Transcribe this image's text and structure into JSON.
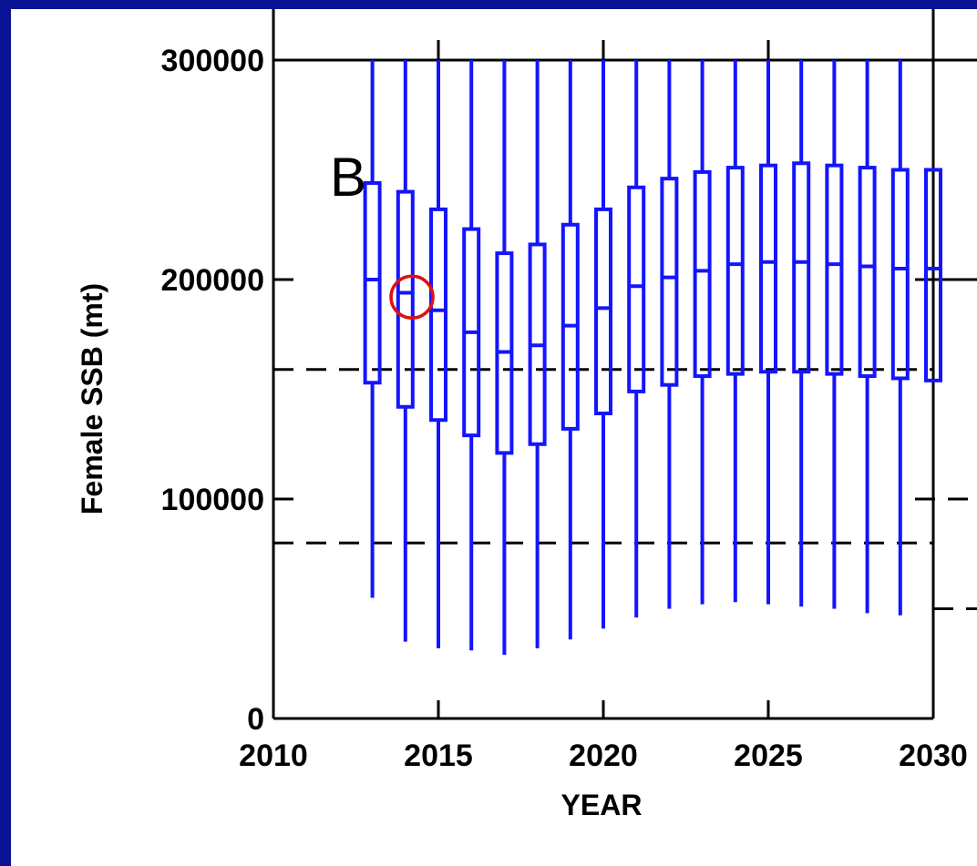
{
  "chart_data": {
    "type": "box",
    "panel_label": "B",
    "xlabel": "YEAR",
    "ylabel": "Female SSB (mt)",
    "xlim": [
      2010,
      2030
    ],
    "ylim": [
      0,
      300000
    ],
    "x_ticks": [
      2010,
      2015,
      2020,
      2025,
      2030
    ],
    "x_tick_labels": [
      "2010",
      "2015",
      "2020",
      "2025",
      "2030"
    ],
    "y_ticks": [
      0,
      100000,
      200000,
      300000
    ],
    "y_tick_labels": [
      "0",
      "100000",
      "200000",
      "300000"
    ],
    "series_color": "#1414ff",
    "reference_lines": [
      {
        "y": 159000,
        "style": "dashed"
      },
      {
        "y": 80000,
        "style": "dashed"
      }
    ],
    "highlight": {
      "x": 2014.2,
      "y": 192000,
      "color": "#e01010"
    },
    "boxes": [
      {
        "x": 2013,
        "low": 55000,
        "q1": 153000,
        "median": 200000,
        "q3": 244000,
        "high": 300000
      },
      {
        "x": 2014,
        "low": 35000,
        "q1": 142000,
        "median": 194000,
        "q3": 240000,
        "high": 300000
      },
      {
        "x": 2015,
        "low": 32000,
        "q1": 136000,
        "median": 186000,
        "q3": 232000,
        "high": 300000
      },
      {
        "x": 2016,
        "low": 31000,
        "q1": 129000,
        "median": 176000,
        "q3": 223000,
        "high": 300000
      },
      {
        "x": 2017,
        "low": 29000,
        "q1": 121000,
        "median": 167000,
        "q3": 212000,
        "high": 300000
      },
      {
        "x": 2018,
        "low": 32000,
        "q1": 125000,
        "median": 170000,
        "q3": 216000,
        "high": 300000
      },
      {
        "x": 2019,
        "low": 36000,
        "q1": 132000,
        "median": 179000,
        "q3": 225000,
        "high": 300000
      },
      {
        "x": 2020,
        "low": 41000,
        "q1": 139000,
        "median": 187000,
        "q3": 232000,
        "high": 300000
      },
      {
        "x": 2021,
        "low": 46000,
        "q1": 149000,
        "median": 197000,
        "q3": 242000,
        "high": 300000
      },
      {
        "x": 2022,
        "low": 50000,
        "q1": 152000,
        "median": 201000,
        "q3": 246000,
        "high": 300000
      },
      {
        "x": 2023,
        "low": 52000,
        "q1": 156000,
        "median": 204000,
        "q3": 249000,
        "high": 300000
      },
      {
        "x": 2024,
        "low": 53000,
        "q1": 157000,
        "median": 207000,
        "q3": 251000,
        "high": 300000
      },
      {
        "x": 2025,
        "low": 52000,
        "q1": 158000,
        "median": 208000,
        "q3": 252000,
        "high": 300000
      },
      {
        "x": 2026,
        "low": 51000,
        "q1": 158000,
        "median": 208000,
        "q3": 253000,
        "high": 300000
      },
      {
        "x": 2027,
        "low": 50000,
        "q1": 157000,
        "median": 207000,
        "q3": 252000,
        "high": 300000
      },
      {
        "x": 2028,
        "low": 48000,
        "q1": 156000,
        "median": 206000,
        "q3": 251000,
        "high": 300000
      },
      {
        "x": 2029,
        "low": 47000,
        "q1": 155000,
        "median": 205000,
        "q3": 250000,
        "high": 300000
      },
      {
        "x": 2030,
        "low": 154000,
        "q1": 154000,
        "median": 205000,
        "q3": 250000,
        "high": 250000
      }
    ]
  }
}
